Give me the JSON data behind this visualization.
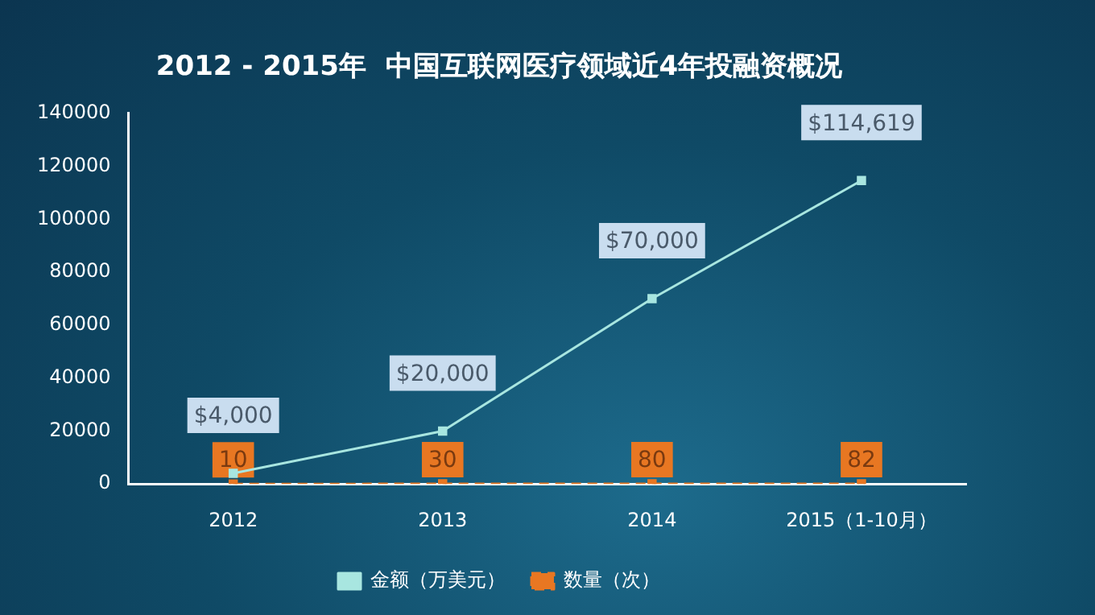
{
  "chart_data": {
    "type": "line",
    "title": "2012 - 2015年  中国互联网医疗领域近4年投融资概况",
    "categories": [
      "2012",
      "2013",
      "2014",
      "2015（1-10月）"
    ],
    "series": [
      {
        "name": "金额（万美元）",
        "color": "#a8e6e0",
        "values": [
          4000,
          20000,
          70000,
          114619
        ],
        "value_labels": [
          "$4,000",
          "$20,000",
          "$70,000",
          "$114,619"
        ]
      },
      {
        "name": "数量（次）",
        "color": "#e87722",
        "values": [
          10,
          30,
          80,
          82
        ],
        "value_labels": [
          "10",
          "30",
          "80",
          "82"
        ],
        "line_style": "dashed"
      }
    ],
    "ylim": [
      0,
      140000
    ],
    "yticks": [
      0,
      20000,
      40000,
      60000,
      80000,
      100000,
      120000,
      140000
    ],
    "grid": false,
    "legend": "bottom",
    "marker": "square"
  }
}
